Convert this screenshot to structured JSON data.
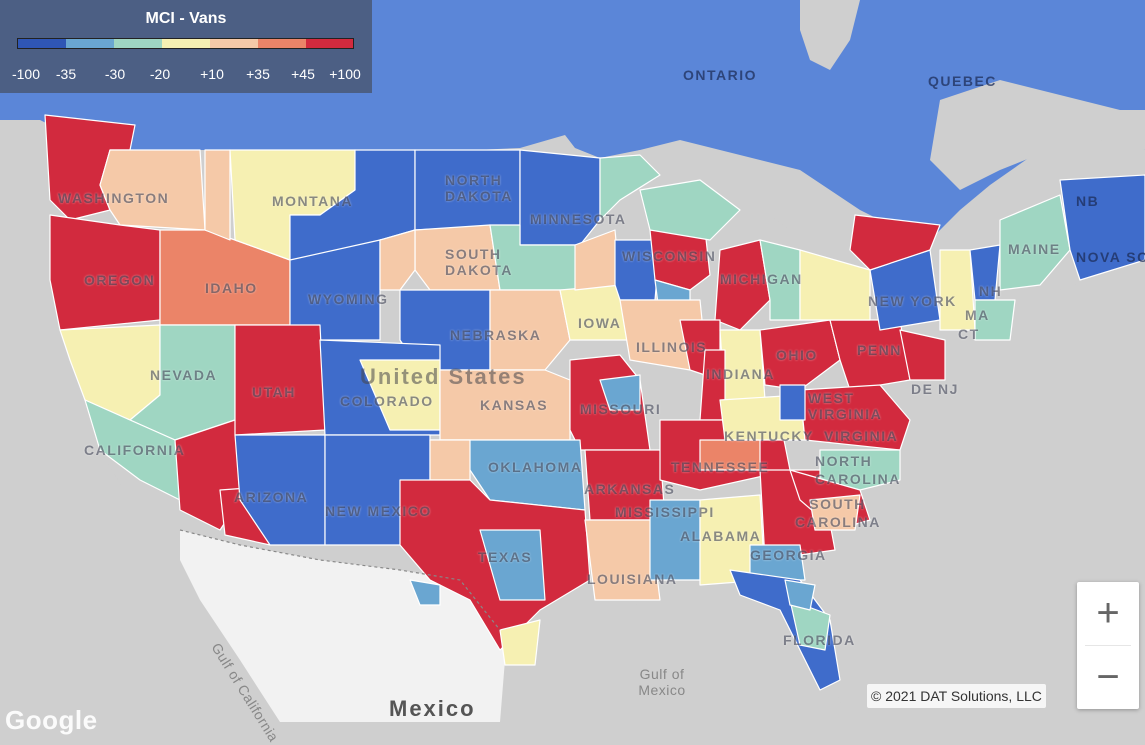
{
  "legend": {
    "title": "MCI - Vans",
    "colors": [
      "#2f56b5",
      "#6aa6d1",
      "#9fd6c2",
      "#f6f0b2",
      "#f5c9a8",
      "#eb8468",
      "#d22a3e"
    ],
    "ticks": [
      "-100",
      "-35",
      "-30",
      "-20",
      "+10",
      "+35",
      "+45",
      "+100"
    ]
  },
  "labels": {
    "ontario": "ONTARIO",
    "quebec": "QUEBEC",
    "washington": "WASHINGTON",
    "oregon": "OREGON",
    "idaho": "IDAHO",
    "montana": "MONTANA",
    "north_dakota": "NORTH DAKOTA",
    "minnesota": "MINNESOTA",
    "south_dakota": "SOUTH DAKOTA",
    "wisconsin": "WISCONSIN",
    "michigan": "MICHIGAN",
    "new_york": "NEW YORK",
    "maine": "MAINE",
    "nova_scotia": "NOVA SC",
    "nb": "NB",
    "nh": "NH",
    "ma": "MA",
    "ct": "CT",
    "de": "DE",
    "nj": "NJ",
    "wyoming": "WYOMING",
    "nebraska": "NEBRASKA",
    "iowa": "IOWA",
    "illinois": "ILLINOIS",
    "indiana": "INDIANA",
    "ohio": "OHIO",
    "pennsylvania": "PENN",
    "nevada": "NEVADA",
    "utah": "UTAH",
    "colorado": "COLORADO",
    "kansas": "KANSAS",
    "missouri": "MISSOURI",
    "united_states": "United States",
    "kentucky": "KENTUCKY",
    "west_virginia": "WEST VIRGINIA",
    "virginia": "VIRGINIA",
    "california": "CALIFORNIA",
    "arizona": "ARIZONA",
    "new_mexico": "NEW MEXICO",
    "oklahoma": "OKLAHOMA",
    "arkansas": "ARKANSAS",
    "tennessee": "TENNESSEE",
    "north_carolina": "NORTH CAROLINA",
    "south_carolina": "SOUTH CAROLINA",
    "mississippi": "MISSISSIPPI",
    "alabama": "ALABAMA",
    "georgia": "GEORGIA",
    "texas": "TEXAS",
    "louisiana": "LOUISIANA",
    "florida": "FLORIDA",
    "gulf_of_california": "Gulf of California",
    "gulf_of_mexico": "Gulf of Mexico",
    "mexico": "Mexico"
  },
  "controls": {
    "zoom_in": "+",
    "zoom_out": "−"
  },
  "attribution": {
    "copyright": "© 2021 DAT Solutions, LLC",
    "logo": "Google"
  }
}
